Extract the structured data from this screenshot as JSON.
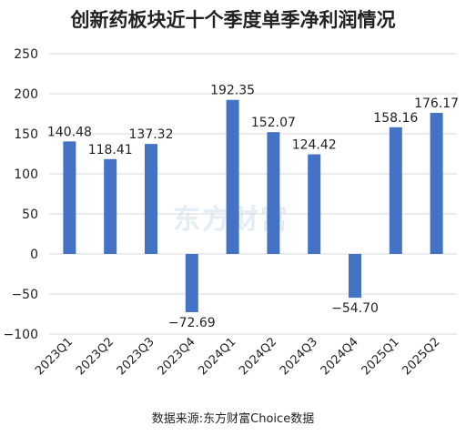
{
  "chart_data": {
    "type": "bar",
    "title": "创新药板块近十个季度单季净利润情况",
    "categories": [
      "2023Q1",
      "2023Q2",
      "2023Q3",
      "2023Q4",
      "2024Q1",
      "2024Q2",
      "2024Q3",
      "2024Q4",
      "2025Q1",
      "2025Q2"
    ],
    "values": [
      140.48,
      118.41,
      137.32,
      -72.69,
      192.35,
      152.07,
      124.42,
      -54.7,
      158.16,
      176.17
    ],
    "value_labels": [
      "140.48",
      "118.41",
      "137.32",
      "−72.69",
      "192.35",
      "152.07",
      "124.42",
      "−54.70",
      "158.16",
      "176.17"
    ],
    "ylim": [
      -100,
      250
    ],
    "yticks": [
      -100,
      -50,
      0,
      50,
      100,
      150,
      200,
      250
    ],
    "ytick_labels": [
      "−100",
      "−50",
      "0",
      "50",
      "100",
      "150",
      "200",
      "250"
    ],
    "grid": true,
    "bar_color": "#4472c4",
    "xlabel": "",
    "ylabel": ""
  },
  "watermark": "东方财富",
  "source": "数据来源:东方财富Choice数据"
}
